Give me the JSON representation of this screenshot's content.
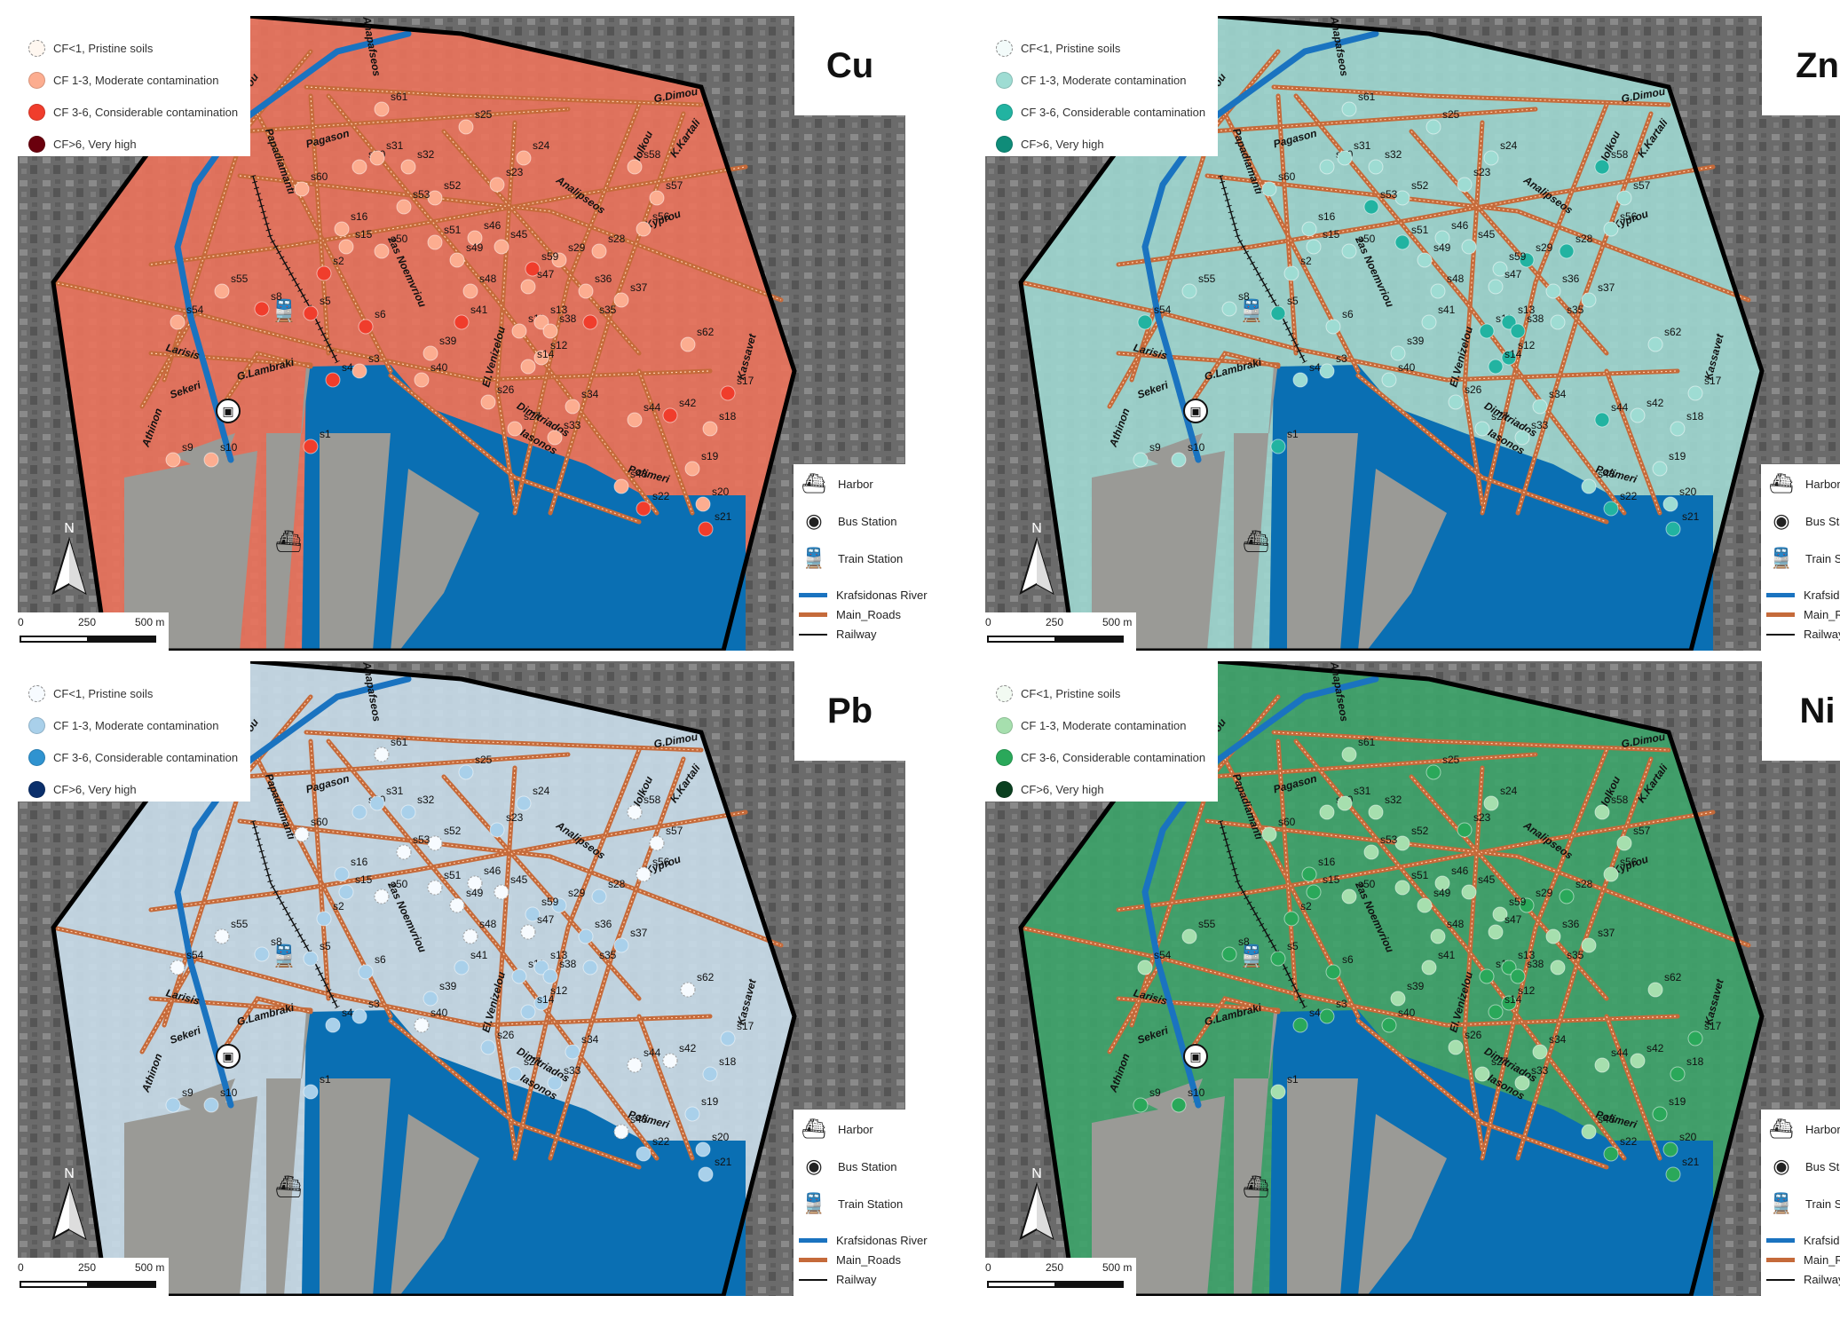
{
  "panels": [
    {
      "element": "Cu",
      "colors": {
        "overlay": "#e9735c",
        "legend": [
          "#fff7f0",
          "#fcad90",
          "#f03d2c",
          "#6a000d"
        ]
      },
      "legend_labels": [
        "CF<1, Pristine soils",
        "CF 1-3, Moderate contamination",
        "CF 3-6, Considerable contamination",
        "CF>6, Very high"
      ],
      "points": {
        "s61": 1,
        "s25": 1,
        "s24": 1,
        "s30": 1,
        "s31": 1,
        "s32": 1,
        "s60": 1,
        "s23": 1,
        "s52": 1,
        "s53": 1,
        "s58": 1,
        "s57": 1,
        "s16": 1,
        "s15": 1,
        "s50": 1,
        "s51": 1,
        "s46": 1,
        "s45": 1,
        "s49": 1,
        "s56": 1,
        "s2": 2,
        "s28": 1,
        "s29": 1,
        "s59": 2,
        "s47": 1,
        "s48": 1,
        "s55": 1,
        "s8": 2,
        "s5": 2,
        "s37": 1,
        "s36": 1,
        "s54": 1,
        "s41": 2,
        "s35": 2,
        "s11": 1,
        "s13": 1,
        "s38": 1,
        "s6": 2,
        "s62": 1,
        "s39": 1,
        "s12": 1,
        "s14": 1,
        "s3": 1,
        "s4": 2,
        "s40": 1,
        "s26": 1,
        "s17": 2,
        "s34": 1,
        "s42": 2,
        "s27": 1,
        "s33": 1,
        "s44": 1,
        "s18": 1,
        "s1": 2,
        "s9": 1,
        "s10": 1,
        "s19": 1,
        "s43": 1,
        "s20": 1,
        "s22": 2,
        "s21": 2
      }
    },
    {
      "element": "Zn",
      "colors": {
        "overlay": "#9ed6cf",
        "legend": [
          "#f3fbfa",
          "#9edcd3",
          "#22b3a1",
          "#0f8c79"
        ]
      },
      "legend_labels": [
        "CF<1, Pristine soils",
        "CF 1-3, Moderate contamination",
        "CF 3-6, Considerable contamination",
        "CF>6, Very high"
      ],
      "points": {
        "s61": 1,
        "s25": 1,
        "s24": 1,
        "s30": 1,
        "s31": 1,
        "s32": 1,
        "s60": 1,
        "s23": 1,
        "s52": 1,
        "s53": 2,
        "s58": 2,
        "s57": 1,
        "s16": 1,
        "s15": 1,
        "s50": 1,
        "s51": 2,
        "s46": 1,
        "s45": 1,
        "s49": 1,
        "s56": 1,
        "s2": 1,
        "s28": 2,
        "s29": 2,
        "s59": 1,
        "s47": 1,
        "s48": 1,
        "s55": 1,
        "s8": 1,
        "s5": 2,
        "s37": 1,
        "s36": 1,
        "s54": 2,
        "s41": 1,
        "s35": 1,
        "s11": 2,
        "s13": 2,
        "s38": 2,
        "s6": 1,
        "s62": 1,
        "s39": 1,
        "s12": 2,
        "s14": 2,
        "s3": 1,
        "s4": 1,
        "s40": 1,
        "s26": 1,
        "s17": 1,
        "s34": 1,
        "s42": 1,
        "s27": 1,
        "s33": 1,
        "s44": 2,
        "s18": 1,
        "s1": 2,
        "s9": 1,
        "s10": 1,
        "s19": 1,
        "s43": 1,
        "s20": 1,
        "s22": 2,
        "s21": 2
      }
    },
    {
      "element": "Pb",
      "colors": {
        "overlay": "#c8dbe8",
        "legend": [
          "#f7fbff",
          "#a9d0ea",
          "#2f93d0",
          "#0a2f6b"
        ]
      },
      "legend_labels": [
        "CF<1, Pristine soils",
        "CF 1-3, Moderate contamination",
        "CF 3-6, Considerable contamination",
        "CF>6, Very high"
      ],
      "points": {
        "s61": 0,
        "s25": 1,
        "s24": 1,
        "s30": 1,
        "s31": 1,
        "s32": 1,
        "s60": 0,
        "s23": 1,
        "s52": 0,
        "s53": 0,
        "s58": 0,
        "s57": 0,
        "s16": 1,
        "s15": 1,
        "s50": 0,
        "s51": 0,
        "s46": 0,
        "s45": 0,
        "s49": 0,
        "s56": 0,
        "s2": 1,
        "s28": 1,
        "s29": 1,
        "s59": 1,
        "s47": 0,
        "s48": 0,
        "s55": 0,
        "s8": 1,
        "s5": 1,
        "s37": 1,
        "s36": 1,
        "s54": 0,
        "s41": 1,
        "s35": 1,
        "s11": 1,
        "s13": 1,
        "s38": 1,
        "s6": 1,
        "s62": 0,
        "s39": 1,
        "s12": 1,
        "s14": 1,
        "s3": 1,
        "s4": 1,
        "s40": 0,
        "s26": 1,
        "s17": 1,
        "s34": 1,
        "s42": 0,
        "s27": 1,
        "s33": 1,
        "s44": 0,
        "s18": 1,
        "s1": 1,
        "s9": 1,
        "s10": 1,
        "s19": 1,
        "s43": 0,
        "s20": 1,
        "s22": 1,
        "s21": 1
      }
    },
    {
      "element": "Ni",
      "colors": {
        "overlay": "#3ea36a",
        "legend": [
          "#f2faf2",
          "#a6dfae",
          "#2aa85a",
          "#0b4020"
        ]
      },
      "legend_labels": [
        "CF<1, Pristine soils",
        "CF 1-3, Moderate contamination",
        "CF 3-6, Considerable contamination",
        "CF>6, Very high"
      ],
      "points": {
        "s61": 1,
        "s25": 2,
        "s24": 1,
        "s30": 1,
        "s31": 1,
        "s32": 1,
        "s60": 1,
        "s23": 2,
        "s52": 1,
        "s53": 1,
        "s58": 1,
        "s57": 1,
        "s16": 2,
        "s15": 2,
        "s50": 1,
        "s51": 1,
        "s46": 1,
        "s45": 1,
        "s49": 1,
        "s56": 1,
        "s2": 2,
        "s28": 2,
        "s29": 2,
        "s59": 1,
        "s47": 1,
        "s48": 1,
        "s55": 1,
        "s8": 2,
        "s5": 2,
        "s37": 1,
        "s36": 1,
        "s54": 1,
        "s41": 1,
        "s35": 1,
        "s11": 2,
        "s13": 2,
        "s38": 2,
        "s6": 2,
        "s62": 1,
        "s39": 1,
        "s12": 2,
        "s14": 2,
        "s3": 2,
        "s4": 2,
        "s40": 2,
        "s26": 1,
        "s17": 2,
        "s34": 1,
        "s42": 1,
        "s27": 1,
        "s33": 1,
        "s44": 1,
        "s18": 2,
        "s1": 1,
        "s9": 2,
        "s10": 2,
        "s19": 2,
        "s43": 1,
        "s20": 2,
        "s22": 2,
        "s21": 2
      }
    }
  ],
  "road_names": [
    "Zarou",
    "Papadiamanti",
    "Pagason",
    "Anapafseos",
    "2as Noemvriou",
    "G.Dimou",
    "Iolkou",
    "K.Kartali",
    "Kyprou",
    "Analipseos",
    "Larisis",
    "Sekeri",
    "Athinon",
    "G.Lambraki",
    "El.Venizelou",
    "Dimitriados",
    "Iasonos",
    "Polimeri",
    "Kassaveti"
  ],
  "side_legend": {
    "harbor": "Harbor",
    "bus_station": "Bus Station",
    "train_station": "Train Station",
    "river": "Krafsidonas River",
    "roads": "Main_Roads",
    "railway": "Railway"
  },
  "scale": {
    "zero": "0",
    "mid": "250",
    "end": "500 m"
  },
  "north": "N",
  "colors": {
    "sea": "#0a6fb3",
    "river": "#1a73c0",
    "roads": "#c56a3a",
    "aerial": "#6b6b6b",
    "pier": "#9a9a96"
  }
}
